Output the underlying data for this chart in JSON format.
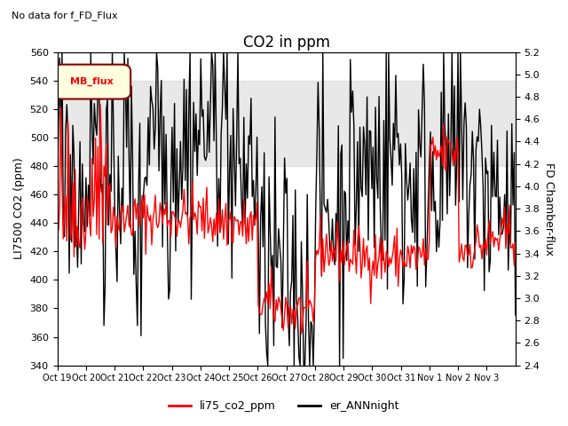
{
  "title": "CO2 in ppm",
  "ylabel_left": "LI7500 CO2 (ppm)",
  "ylabel_right": "FD Chamber-flux",
  "ylim_left": [
    340,
    560
  ],
  "ylim_right": [
    2.4,
    5.2
  ],
  "no_data_text": "No data for f_FD_Flux",
  "mb_flux_label": "MB_flux",
  "x_tick_labels": [
    "Oct 19",
    "Oct 20",
    "Oct 21",
    "Oct 22",
    "Oct 23",
    "Oct 24",
    "Oct 25",
    "Oct 26",
    "Oct 27",
    "Oct 28",
    "Oct 29",
    "Oct 30",
    "Oct 31",
    "Nov 1",
    "Nov 2",
    "Nov 3"
  ],
  "shade_band": [
    480,
    540
  ],
  "legend_labels": [
    "li75_co2_ppm",
    "er_ANNnight"
  ],
  "line1_color": "red",
  "line2_color": "black",
  "background_color": "white",
  "title_fontsize": 12,
  "axis_fontsize": 9,
  "tick_fontsize": 8
}
